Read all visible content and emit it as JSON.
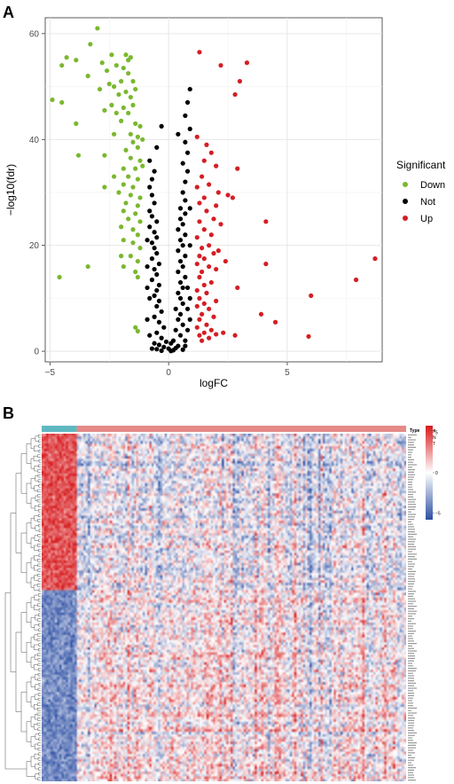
{
  "panels": {
    "a_letter": "A",
    "b_letter": "B"
  },
  "chart_data": [
    {
      "type": "scatter",
      "title": "",
      "xlabel": "logFC",
      "ylabel": "−log10(fdr)",
      "xlim": [
        -5.2,
        9.0
      ],
      "ylim": [
        -2,
        63
      ],
      "xticks": [
        -5,
        0,
        5
      ],
      "yticks": [
        0,
        20,
        40,
        60
      ],
      "grid": true,
      "legend": {
        "title": "Significant",
        "position": "right",
        "entries": [
          {
            "name": "Down",
            "color": "#7ab82e"
          },
          {
            "name": "Not",
            "color": "#000000"
          },
          {
            "name": "Up",
            "color": "#d41e24"
          }
        ]
      },
      "series": [
        {
          "name": "Down",
          "color": "#7ab82e",
          "points": [
            [
              -3.0,
              61.0
            ],
            [
              -3.3,
              58.0
            ],
            [
              -2.4,
              56.0
            ],
            [
              -4.3,
              55.5
            ],
            [
              -3.9,
              55.0
            ],
            [
              -1.8,
              56.0
            ],
            [
              -4.5,
              54.0
            ],
            [
              -2.8,
              54.5
            ],
            [
              -2.2,
              54.0
            ],
            [
              -1.7,
              55.0
            ],
            [
              -1.6,
              55.5
            ],
            [
              -2.6,
              53.0
            ],
            [
              -1.9,
              53.5
            ],
            [
              -3.4,
              52.0
            ],
            [
              -2.5,
              50.5
            ],
            [
              -2.0,
              51.0
            ],
            [
              -1.7,
              52.5
            ],
            [
              -1.5,
              51.0
            ],
            [
              -2.9,
              49.5
            ],
            [
              -2.3,
              50.0
            ],
            [
              -1.8,
              49.0
            ],
            [
              -1.4,
              49.5
            ],
            [
              -2.1,
              48.5
            ],
            [
              -1.6,
              48.0
            ],
            [
              -4.9,
              47.5
            ],
            [
              -4.5,
              47.0
            ],
            [
              -2.4,
              46.5
            ],
            [
              -1.9,
              46.0
            ],
            [
              -1.5,
              46.5
            ],
            [
              -2.7,
              45.5
            ],
            [
              -2.2,
              45.0
            ],
            [
              -1.7,
              45.0
            ],
            [
              -3.9,
              43.0
            ],
            [
              -2.0,
              43.5
            ],
            [
              -1.4,
              43.0
            ],
            [
              -1.2,
              42.5
            ],
            [
              -2.3,
              41.0
            ],
            [
              -1.6,
              41.0
            ],
            [
              -1.3,
              40.5
            ],
            [
              -1.5,
              39.5
            ],
            [
              -1.1,
              40.0
            ],
            [
              -1.8,
              38.0
            ],
            [
              -1.3,
              38.5
            ],
            [
              -3.8,
              37.0
            ],
            [
              -2.7,
              37.0
            ],
            [
              -1.6,
              36.5
            ],
            [
              -1.2,
              36.0
            ],
            [
              -1.9,
              34.5
            ],
            [
              -1.4,
              34.5
            ],
            [
              -1.1,
              35.0
            ],
            [
              -2.3,
              33.0
            ],
            [
              -1.7,
              33.0
            ],
            [
              -1.3,
              32.5
            ],
            [
              -1.9,
              31.5
            ],
            [
              -1.5,
              31.0
            ],
            [
              -2.1,
              30.0
            ],
            [
              -1.6,
              29.5
            ],
            [
              -1.2,
              29.0
            ],
            [
              -2.7,
              31.0
            ],
            [
              -1.8,
              28.0
            ],
            [
              -1.3,
              27.5
            ],
            [
              -1.9,
              26.5
            ],
            [
              -1.4,
              26.0
            ],
            [
              -1.7,
              25.0
            ],
            [
              -1.2,
              24.5
            ],
            [
              -2.0,
              23.5
            ],
            [
              -1.5,
              23.0
            ],
            [
              -1.3,
              22.0
            ],
            [
              -1.9,
              21.0
            ],
            [
              -1.5,
              20.5
            ],
            [
              -1.2,
              19.5
            ],
            [
              -2.0,
              18.0
            ],
            [
              -1.6,
              18.0
            ],
            [
              -1.3,
              17.0
            ],
            [
              -1.9,
              16.0
            ],
            [
              -1.4,
              15.0
            ],
            [
              -3.4,
              16.0
            ],
            [
              -1.3,
              14.0
            ],
            [
              -4.6,
              14.0
            ],
            [
              -1.4,
              4.5
            ],
            [
              -1.3,
              3.8
            ]
          ]
        },
        {
          "name": "Not",
          "color": "#000000",
          "points": [
            [
              0.9,
              49.5
            ],
            [
              0.8,
              47.0
            ],
            [
              0.7,
              44.5
            ],
            [
              0.9,
              42.0
            ],
            [
              -0.3,
              42.5
            ],
            [
              0.4,
              41.0
            ],
            [
              0.7,
              39.5
            ],
            [
              -0.5,
              38.5
            ],
            [
              0.8,
              37.5
            ],
            [
              -0.8,
              36.0
            ],
            [
              0.6,
              35.5
            ],
            [
              -0.6,
              34.0
            ],
            [
              0.8,
              34.0
            ],
            [
              -0.7,
              32.5
            ],
            [
              0.7,
              32.0
            ],
            [
              -0.8,
              31.0
            ],
            [
              0.6,
              30.0
            ],
            [
              -0.7,
              29.5
            ],
            [
              0.7,
              28.5
            ],
            [
              -0.6,
              28.0
            ],
            [
              0.5,
              27.0
            ],
            [
              -0.8,
              26.5
            ],
            [
              0.7,
              26.0
            ],
            [
              -0.7,
              25.5
            ],
            [
              0.5,
              25.0
            ],
            [
              -0.5,
              24.5
            ],
            [
              0.6,
              24.0
            ],
            [
              -0.8,
              23.5
            ],
            [
              0.4,
              23.0
            ],
            [
              -0.6,
              22.5
            ],
            [
              0.7,
              22.0
            ],
            [
              -0.5,
              21.5
            ],
            [
              0.5,
              21.0
            ],
            [
              -0.7,
              20.5
            ],
            [
              0.6,
              20.0
            ],
            [
              -0.6,
              19.5
            ],
            [
              0.4,
              19.0
            ],
            [
              -0.5,
              18.5
            ],
            [
              0.7,
              18.0
            ],
            [
              -0.7,
              17.5
            ],
            [
              0.5,
              17.0
            ],
            [
              -0.4,
              16.5
            ],
            [
              0.6,
              16.0
            ],
            [
              -0.6,
              15.5
            ],
            [
              0.4,
              15.0
            ],
            [
              -0.5,
              14.5
            ],
            [
              0.7,
              14.0
            ],
            [
              -0.7,
              13.5
            ],
            [
              0.5,
              13.0
            ],
            [
              -0.4,
              12.5
            ],
            [
              0.6,
              12.0
            ],
            [
              -0.5,
              11.5
            ],
            [
              0.4,
              11.0
            ],
            [
              -0.6,
              10.5
            ],
            [
              0.5,
              10.0
            ],
            [
              -0.4,
              9.5
            ],
            [
              0.6,
              9.0
            ],
            [
              -0.5,
              8.5
            ],
            [
              0.3,
              8.0
            ],
            [
              -0.3,
              7.5
            ],
            [
              0.5,
              7.0
            ],
            [
              -0.6,
              6.5
            ],
            [
              0.4,
              6.0
            ],
            [
              -0.4,
              5.5
            ],
            [
              0.6,
              5.0
            ],
            [
              -0.2,
              4.5
            ],
            [
              0.3,
              4.0
            ],
            [
              -0.5,
              3.5
            ],
            [
              0.5,
              3.0
            ],
            [
              -0.3,
              2.5
            ],
            [
              0.2,
              2.0
            ],
            [
              -0.1,
              1.8
            ],
            [
              0.1,
              1.5
            ],
            [
              -0.4,
              1.2
            ],
            [
              0.4,
              1.0
            ],
            [
              -0.2,
              0.8
            ],
            [
              0.3,
              0.6
            ],
            [
              0.0,
              0.5
            ],
            [
              -0.5,
              0.4
            ],
            [
              0.6,
              0.3
            ],
            [
              0.2,
              0.2
            ],
            [
              -0.3,
              0.1
            ],
            [
              0.1,
              0.05
            ],
            [
              0.8,
              12.0
            ],
            [
              0.8,
              8.0
            ],
            [
              0.8,
              4.0
            ],
            [
              -0.8,
              10.0
            ],
            [
              -0.9,
              16.0
            ],
            [
              0.9,
              20.0
            ],
            [
              -0.9,
              21.0
            ],
            [
              0.9,
              27.0
            ],
            [
              -0.8,
              3.0
            ],
            [
              0.7,
              2.0
            ],
            [
              -0.6,
              1.5
            ],
            [
              0.7,
              1.0
            ],
            [
              -0.7,
              0.5
            ],
            [
              0.9,
              6.0
            ],
            [
              -0.9,
              6.0
            ],
            [
              0.9,
              10.0
            ],
            [
              -0.9,
              12.0
            ]
          ]
        },
        {
          "name": "Up",
          "color": "#d41e24",
          "points": [
            [
              1.3,
              56.5
            ],
            [
              3.3,
              54.5
            ],
            [
              2.2,
              54.0
            ],
            [
              3.0,
              51.0
            ],
            [
              2.8,
              48.5
            ],
            [
              1.2,
              40.5
            ],
            [
              1.6,
              39.0
            ],
            [
              1.5,
              36.0
            ],
            [
              1.8,
              37.5
            ],
            [
              2.0,
              35.0
            ],
            [
              2.9,
              34.5
            ],
            [
              1.4,
              33.0
            ],
            [
              1.2,
              31.0
            ],
            [
              1.7,
              31.5
            ],
            [
              2.1,
              30.0
            ],
            [
              1.5,
              29.0
            ],
            [
              2.5,
              29.5
            ],
            [
              2.7,
              29.0
            ],
            [
              1.3,
              28.0
            ],
            [
              2.0,
              27.5
            ],
            [
              1.6,
              26.5
            ],
            [
              1.9,
              25.0
            ],
            [
              1.3,
              24.5
            ],
            [
              2.2,
              24.0
            ],
            [
              4.1,
              24.5
            ],
            [
              1.5,
              23.0
            ],
            [
              1.8,
              22.0
            ],
            [
              1.2,
              21.5
            ],
            [
              1.7,
              20.0
            ],
            [
              1.4,
              19.5
            ],
            [
              2.1,
              19.0
            ],
            [
              1.3,
              18.0
            ],
            [
              1.9,
              18.5
            ],
            [
              1.5,
              17.5
            ],
            [
              2.4,
              17.0
            ],
            [
              1.2,
              16.5
            ],
            [
              1.7,
              16.0
            ],
            [
              4.1,
              16.5
            ],
            [
              8.7,
              17.5
            ],
            [
              1.4,
              15.0
            ],
            [
              2.0,
              15.5
            ],
            [
              1.3,
              14.0
            ],
            [
              7.9,
              13.5
            ],
            [
              1.8,
              13.0
            ],
            [
              1.5,
              12.5
            ],
            [
              2.9,
              12.0
            ],
            [
              1.2,
              11.5
            ],
            [
              1.6,
              11.0
            ],
            [
              6.0,
              10.5
            ],
            [
              1.3,
              10.0
            ],
            [
              2.0,
              9.5
            ],
            [
              1.5,
              9.0
            ],
            [
              1.2,
              8.5
            ],
            [
              1.7,
              8.0
            ],
            [
              3.9,
              7.0
            ],
            [
              1.4,
              7.0
            ],
            [
              1.9,
              6.5
            ],
            [
              1.3,
              6.0
            ],
            [
              4.5,
              5.5
            ],
            [
              1.6,
              5.0
            ],
            [
              1.2,
              4.5
            ],
            [
              1.8,
              4.0
            ],
            [
              1.5,
              3.5
            ],
            [
              2.3,
              3.5
            ],
            [
              1.3,
              3.0
            ],
            [
              2.8,
              3.0
            ],
            [
              1.7,
              2.5
            ],
            [
              5.9,
              2.8
            ],
            [
              1.4,
              2.0
            ],
            [
              2.0,
              3.2
            ]
          ]
        }
      ]
    },
    {
      "type": "heatmap",
      "title": "",
      "legend": {
        "type_title": "Type",
        "type_entries": [
          {
            "name": "N",
            "color": "#5fb8c1"
          },
          {
            "name": "T",
            "color": "#e58a87"
          }
        ],
        "scale_ticks": [
          5,
          0,
          -5
        ],
        "scale_colors": [
          "#d7191c",
          "#ffffff",
          "#2c4ea3"
        ]
      },
      "groups": [
        {
          "name": "N",
          "samples": 16
        },
        {
          "name": "T",
          "samples": 150
        }
      ],
      "n_genes": 140
    }
  ]
}
